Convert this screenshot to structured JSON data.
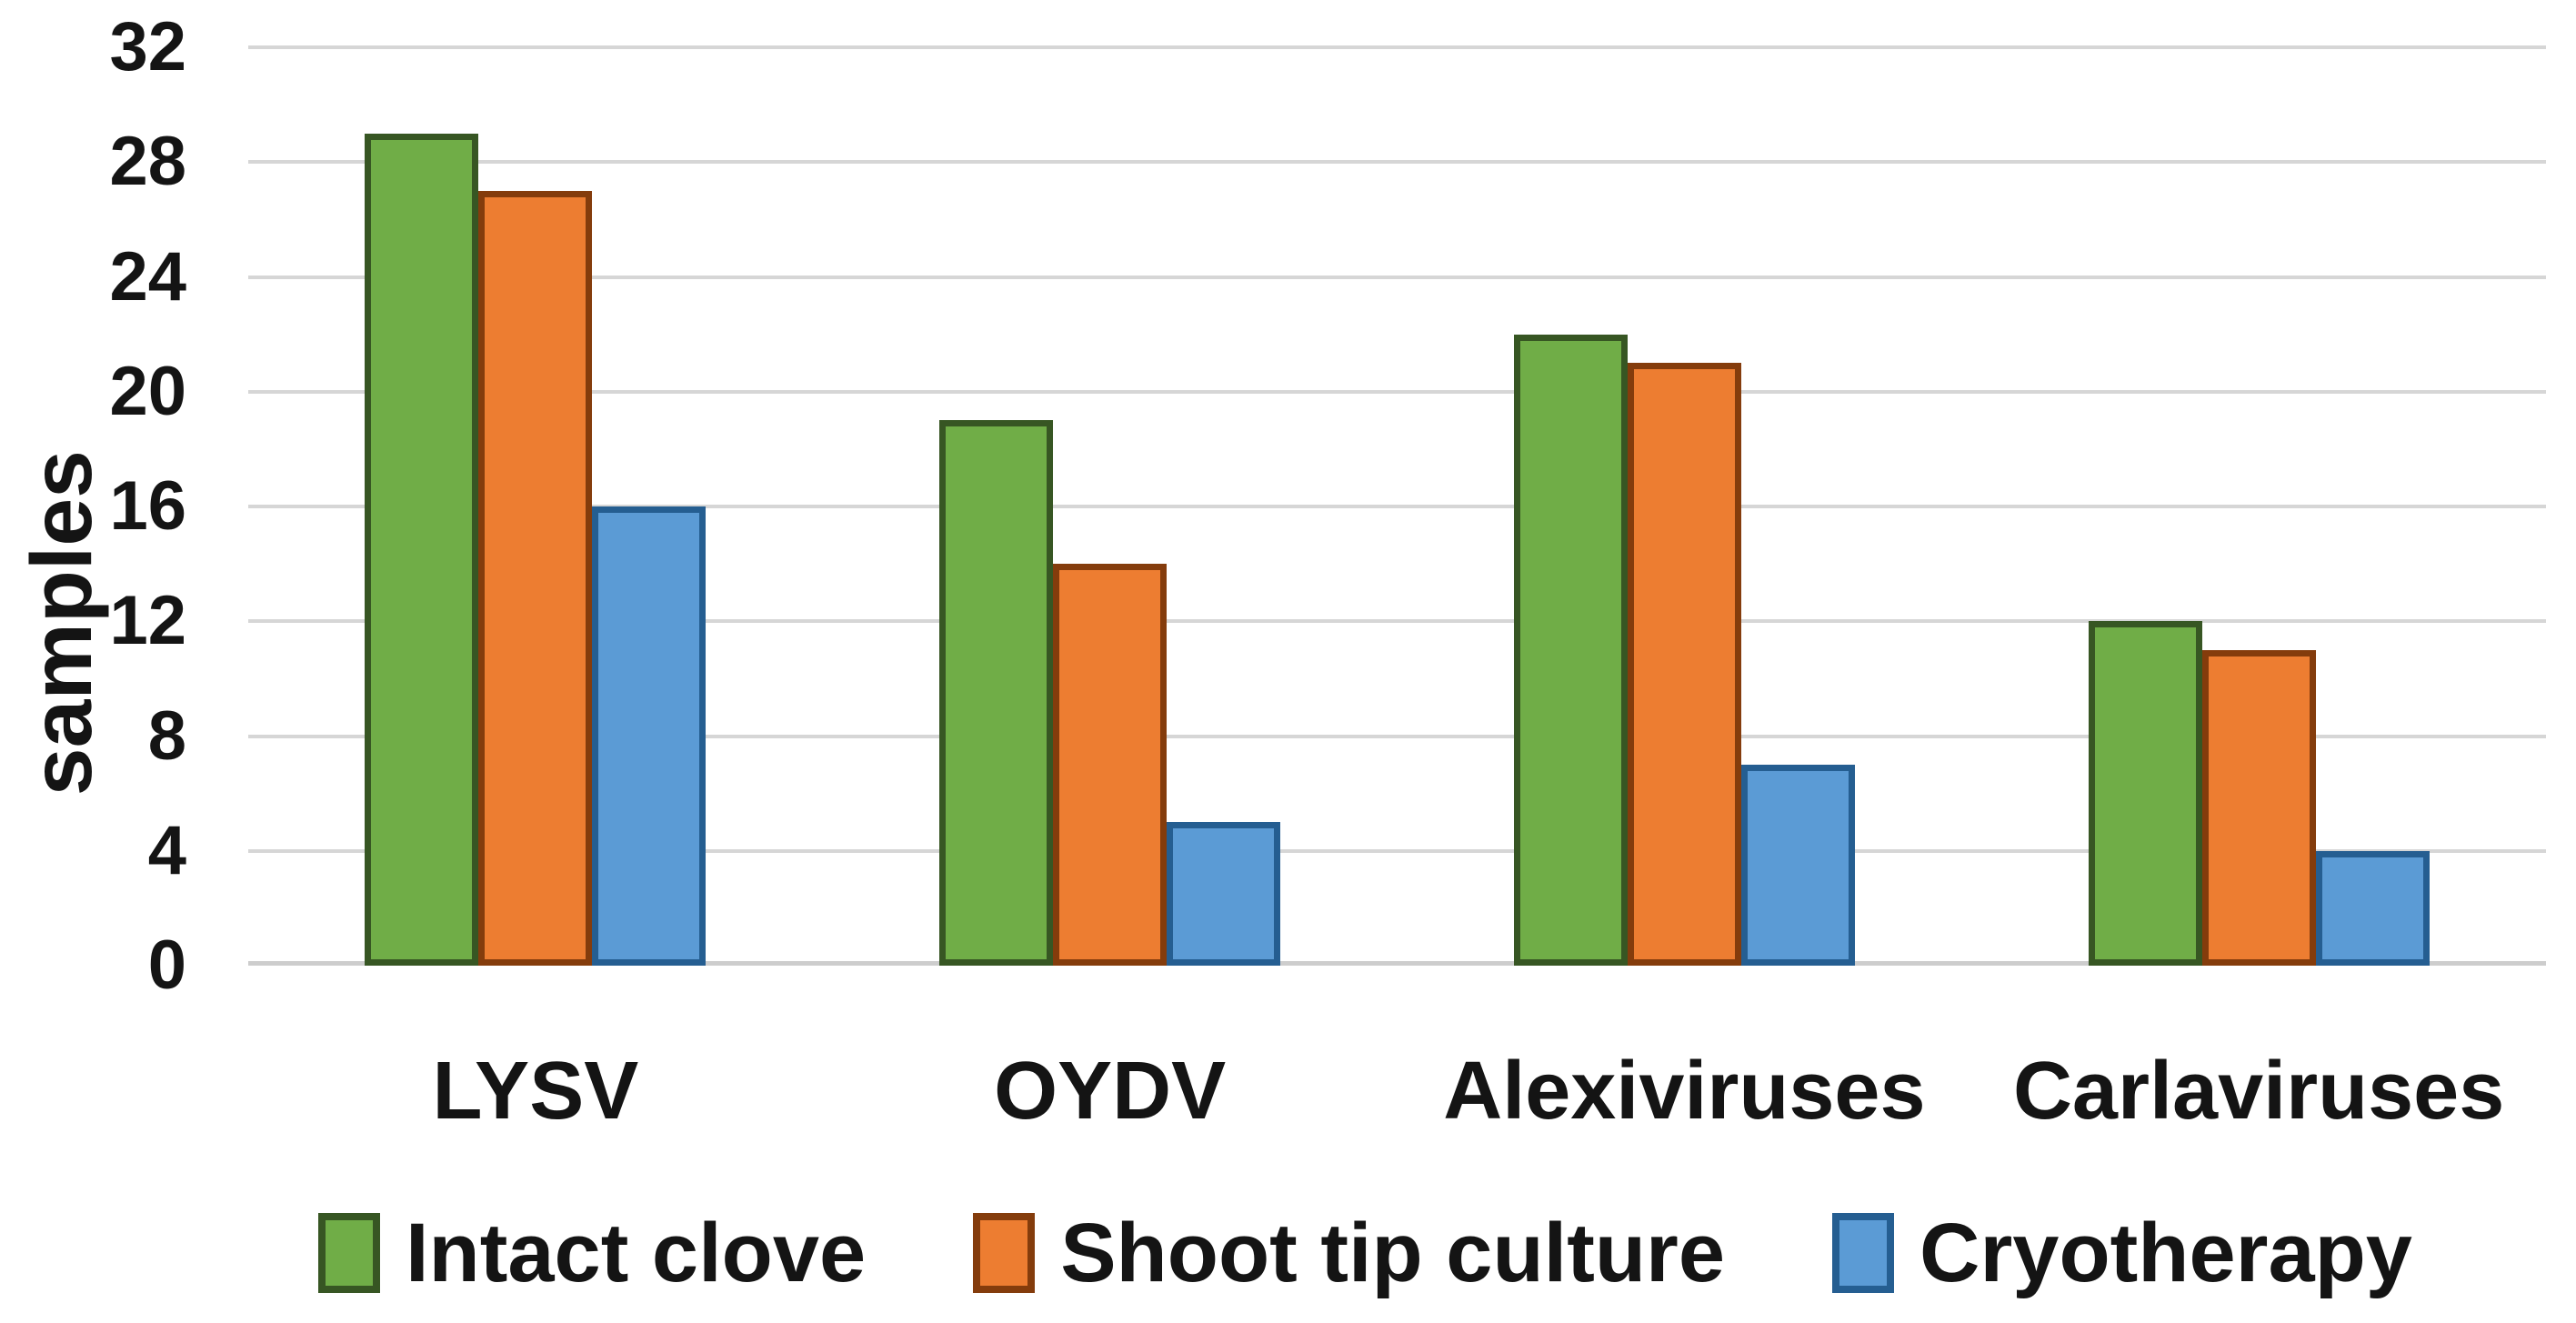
{
  "chart_data": {
    "type": "bar",
    "title": "",
    "ylabel": "samples",
    "xlabel": "",
    "categories": [
      "LYSV",
      "OYDV",
      "Alexiviruses",
      "Carlaviruses"
    ],
    "series": [
      {
        "name": "Intact clove",
        "fill": "#70AD47",
        "border": "#375623",
        "values": [
          29,
          19,
          22,
          12
        ]
      },
      {
        "name": "Shoot tip culture",
        "fill": "#ED7D31",
        "border": "#843C0C",
        "values": [
          27,
          14,
          21,
          11
        ]
      },
      {
        "name": "Cryotherapy",
        "fill": "#5B9BD5",
        "border": "#255E91",
        "values": [
          16,
          5,
          7,
          4
        ]
      }
    ],
    "ylim": [
      0,
      32
    ],
    "yticks": [
      0,
      4,
      8,
      12,
      16,
      20,
      24,
      28,
      32
    ],
    "grid": "horizontal",
    "gridline_color": "#d6d6d6",
    "text_color": "#141414",
    "legend_position": "bottom"
  }
}
